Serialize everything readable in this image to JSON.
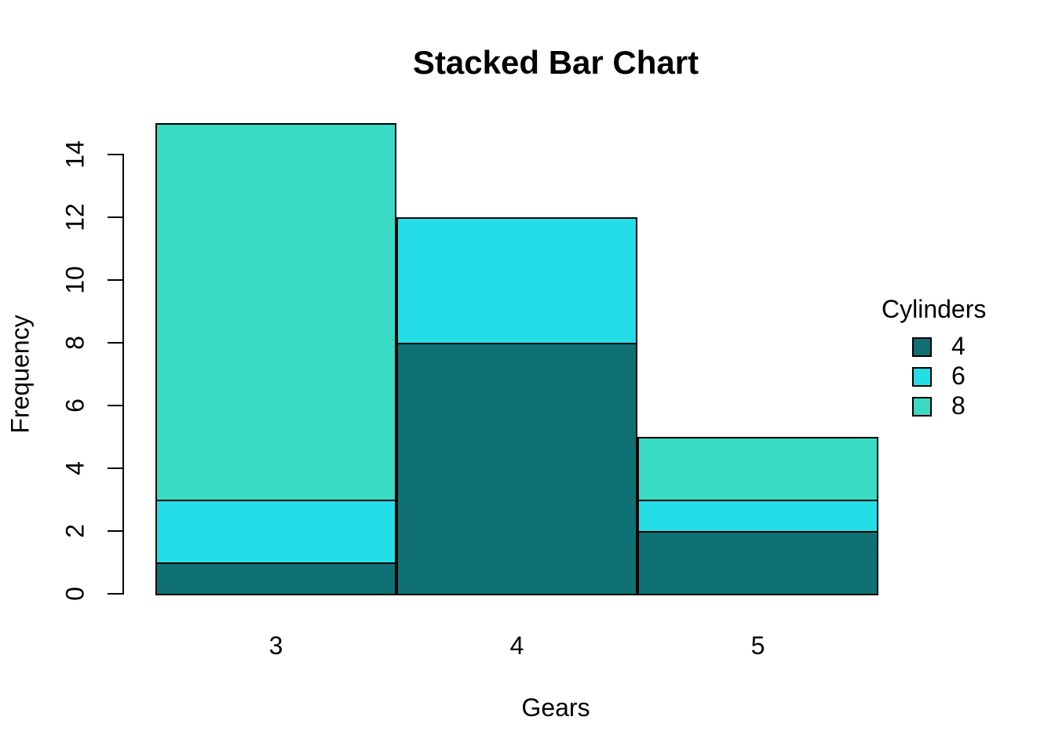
{
  "title": "Stacked Bar Chart",
  "chart_data": {
    "type": "bar",
    "stacked": true,
    "title": "Stacked Bar Chart",
    "xlabel": "Gears",
    "ylabel": "Frequency",
    "categories": [
      "3",
      "4",
      "5"
    ],
    "series": [
      {
        "name": "4",
        "color": "#0F7173",
        "values": [
          1,
          8,
          2
        ]
      },
      {
        "name": "6",
        "color": "#23DEE7",
        "values": [
          2,
          4,
          1
        ]
      },
      {
        "name": "8",
        "color": "#3ADBC4",
        "values": [
          12,
          0,
          2
        ]
      }
    ],
    "totals": [
      15,
      12,
      5
    ],
    "ylim": [
      0,
      15
    ],
    "yticks": [
      0,
      2,
      4,
      6,
      8,
      10,
      12,
      14
    ],
    "grid": false,
    "legend_position": "right",
    "bar_border_color": "#000000",
    "axis_color": "#000000",
    "background_color": "#FFFFFF"
  },
  "legend": {
    "title": "Cylinders",
    "entries": [
      {
        "label": "4",
        "color": "#0F7173"
      },
      {
        "label": "6",
        "color": "#23DEE7"
      },
      {
        "label": "8",
        "color": "#3ADBC4"
      }
    ]
  }
}
